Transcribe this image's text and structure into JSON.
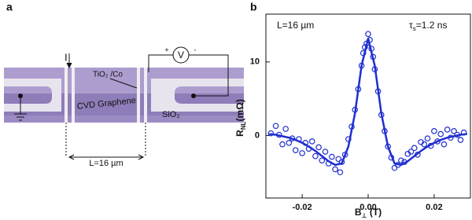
{
  "panel_a": {
    "label": "a",
    "current": "I",
    "contact": "TiO₂ /Co",
    "channel": "CVD Graphene",
    "substrate": "SiO₂",
    "length": "L=16 µm",
    "voltmeter": "V",
    "plus": "+",
    "minus": "-"
  },
  "chart_data": {
    "type": "scatter",
    "panel": "b",
    "annotations": [
      "L=16 µm",
      [
        "τ",
        "s",
        "=1.2 ns"
      ]
    ],
    "xlabel": [
      "B",
      "⊥",
      " (T)"
    ],
    "ylabel": [
      "R",
      "NL",
      "(mΩ)"
    ],
    "color": "#1f2fd0",
    "xlim": [
      -0.031,
      0.031
    ],
    "ylim": [
      -8.5,
      16.5
    ],
    "xticks": [
      -0.02,
      {
        "value": 0,
        "label": "0.00"
      },
      0.02
    ],
    "yticks": [
      0,
      10
    ],
    "points": {
      "x": [
        -0.0295,
        -0.028,
        -0.027,
        -0.026,
        -0.025,
        -0.024,
        -0.023,
        -0.022,
        -0.021,
        -0.02,
        -0.019,
        -0.018,
        -0.017,
        -0.016,
        -0.015,
        -0.014,
        -0.013,
        -0.012,
        -0.011,
        -0.01,
        -0.009,
        -0.0085,
        -0.008,
        -0.007,
        -0.006,
        -0.005,
        -0.004,
        -0.003,
        -0.002,
        -0.0015,
        -0.001,
        -0.0005,
        0,
        0.0005,
        0.001,
        0.0015,
        0.002,
        0.003,
        0.004,
        0.005,
        0.006,
        0.007,
        0.008,
        0.009,
        0.01,
        0.011,
        0.012,
        0.013,
        0.014,
        0.015,
        0.016,
        0.017,
        0.018,
        0.019,
        0.02,
        0.021,
        0.022,
        0.023,
        0.024,
        0.025,
        0.026,
        0.027,
        0.028,
        0.029
      ],
      "y": [
        0.3,
        1.3,
        0.1,
        -1.2,
        0.9,
        -1.0,
        -0.4,
        -2.0,
        -0.5,
        -2.4,
        -1.0,
        -1.8,
        -0.8,
        -2.8,
        -1.6,
        -3.4,
        -2.2,
        -3.8,
        -2.9,
        -4.6,
        -3.2,
        -5.0,
        -3.6,
        -2.6,
        -0.5,
        1.2,
        3.5,
        6.3,
        9.5,
        11.2,
        12.0,
        12.5,
        13.8,
        13.0,
        11.8,
        10.7,
        9.0,
        6.0,
        2.8,
        0.6,
        -1.5,
        -3.0,
        -4.4,
        -4.0,
        -3.4,
        -3.6,
        -2.5,
        -2.2,
        -1.7,
        -2.6,
        -0.9,
        -1.2,
        -0.4,
        -1.4,
        0.6,
        -0.8,
        0.2,
        -1.2,
        0.8,
        -0.3,
        0.6,
        0.1,
        -0.6,
        0.4
      ]
    },
    "fit": {
      "x": [
        -0.03,
        -0.028,
        -0.026,
        -0.024,
        -0.022,
        -0.02,
        -0.018,
        -0.016,
        -0.014,
        -0.012,
        -0.01,
        -0.008,
        -0.006,
        -0.004,
        -0.002,
        0,
        0.002,
        0.004,
        0.006,
        0.008,
        0.01,
        0.012,
        0.014,
        0.016,
        0.018,
        0.02,
        0.022,
        0.024,
        0.026,
        0.028,
        0.03
      ],
      "y": [
        0.2,
        0.1,
        -0.1,
        -0.3,
        -0.6,
        -1.0,
        -1.5,
        -2.1,
        -2.8,
        -3.5,
        -4.0,
        -3.8,
        -1.5,
        3.0,
        9.5,
        13.2,
        9.5,
        3.0,
        -1.5,
        -3.8,
        -4.0,
        -3.5,
        -2.8,
        -2.1,
        -1.5,
        -1.0,
        -0.6,
        -0.3,
        -0.1,
        0.1,
        0.2
      ]
    }
  }
}
